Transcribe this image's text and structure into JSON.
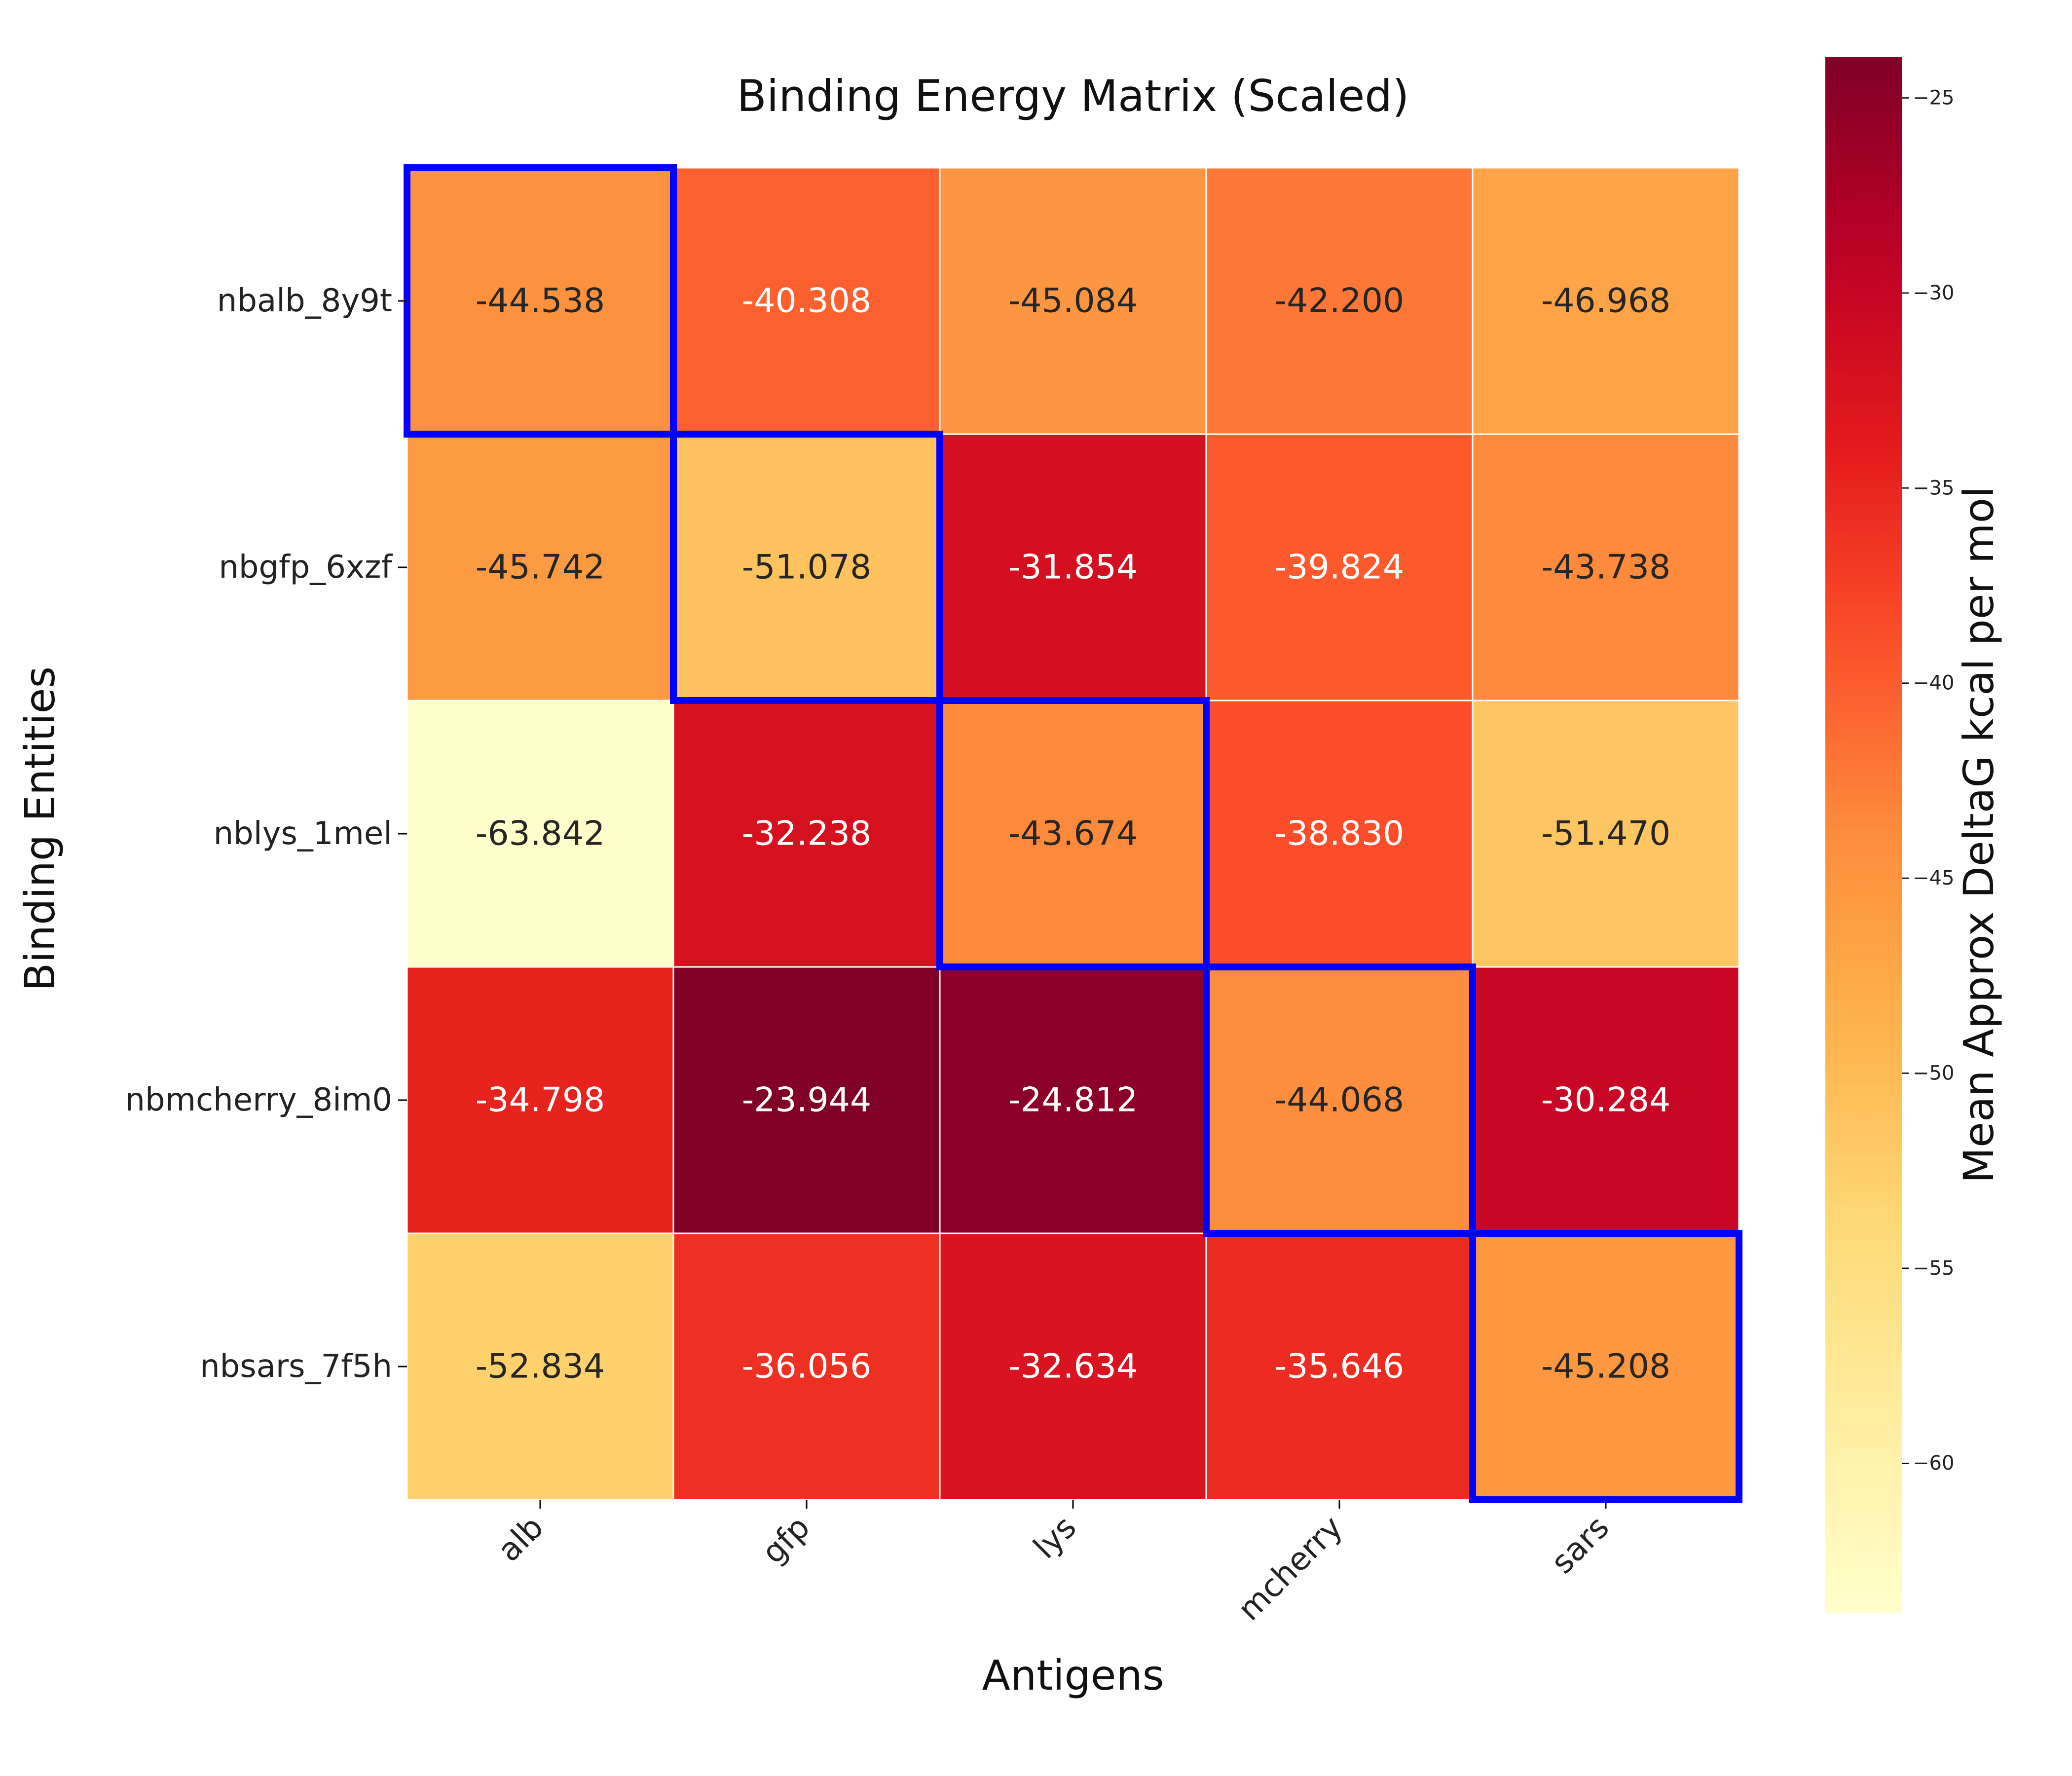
{
  "chart_data": {
    "type": "heatmap",
    "title": "Binding Energy Matrix (Scaled)",
    "xlabel": "Antigens",
    "ylabel": "Binding Entities",
    "colorbar_label": "Mean Approx DeltaG kcal per mol",
    "colormap": "YlOrRd_r",
    "x_categories": [
      "alb",
      "gfp",
      "lys",
      "mcherry",
      "sars"
    ],
    "y_categories": [
      "nbalb_8y9t",
      "nbgfp_6xzf",
      "nblys_1mel",
      "nbmcherry_8im0",
      "nbsars_7f5h"
    ],
    "values": [
      [
        -44.538,
        -40.308,
        -45.084,
        -42.2,
        -46.968
      ],
      [
        -45.742,
        -51.078,
        -31.854,
        -39.824,
        -43.738
      ],
      [
        -63.842,
        -32.238,
        -43.674,
        -38.83,
        -51.47
      ],
      [
        -34.798,
        -23.944,
        -24.812,
        -44.068,
        -30.284
      ],
      [
        -52.834,
        -36.056,
        -32.634,
        -35.646,
        -45.208
      ]
    ],
    "value_labels": [
      [
        "-44.538",
        "-40.308",
        "-45.084",
        "-42.200",
        "-46.968"
      ],
      [
        "-45.742",
        "-51.078",
        "-31.854",
        "-39.824",
        "-43.738"
      ],
      [
        "-63.842",
        "-32.238",
        "-43.674",
        "-38.830",
        "-51.470"
      ],
      [
        "-34.798",
        "-23.944",
        "-24.812",
        "-44.068",
        "-30.284"
      ],
      [
        "-52.834",
        "-36.056",
        "-32.634",
        "-35.646",
        "-45.208"
      ]
    ],
    "vmin": -63.842,
    "vmax": -23.944,
    "colorbar_ticks": [
      -25,
      -30,
      -35,
      -40,
      -45,
      -50,
      -55,
      -60
    ],
    "highlight_cells": [
      [
        0,
        0
      ],
      [
        1,
        1
      ],
      [
        2,
        2
      ],
      [
        3,
        3
      ],
      [
        4,
        4
      ]
    ],
    "highlight_color": "#0000ff",
    "grid_line_color": "#ffffff"
  }
}
